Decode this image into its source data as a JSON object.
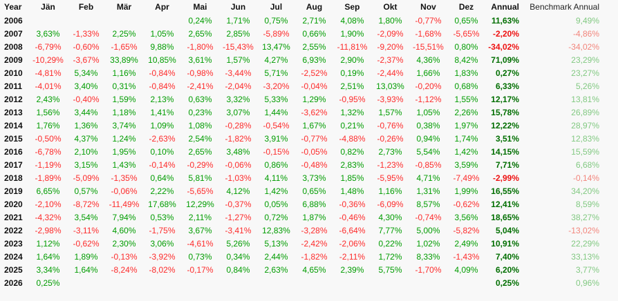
{
  "table": {
    "columns": [
      "Year",
      "Jän",
      "Feb",
      "Mär",
      "Apr",
      "Mai",
      "Jun",
      "Jul",
      "Aug",
      "Sep",
      "Okt",
      "Nov",
      "Dez",
      "Annual",
      "Benchmark Annual"
    ],
    "rows": [
      {
        "year": "2006",
        "months": [
          "",
          "",
          "",
          "",
          "0,24%",
          "1,71%",
          "0,75%",
          "2,71%",
          "4,08%",
          "1,80%",
          "-0,77%",
          "0,65%"
        ],
        "annual": "11,63%",
        "benchmark": "9,49%"
      },
      {
        "year": "2007",
        "months": [
          "3,63%",
          "-1,33%",
          "2,25%",
          "1,05%",
          "2,65%",
          "2,85%",
          "-5,89%",
          "0,66%",
          "1,90%",
          "-2,09%",
          "-1,68%",
          "-5,65%"
        ],
        "annual": "-2,20%",
        "benchmark": "-4,86%"
      },
      {
        "year": "2008",
        "months": [
          "-6,79%",
          "-0,60%",
          "-1,65%",
          "9,88%",
          "-1,80%",
          "-15,43%",
          "13,47%",
          "2,55%",
          "-11,81%",
          "-9,20%",
          "-15,51%",
          "0,80%"
        ],
        "annual": "-34,02%",
        "benchmark": "-34,02%"
      },
      {
        "year": "2009",
        "months": [
          "-10,29%",
          "-3,67%",
          "33,89%",
          "10,85%",
          "3,61%",
          "1,57%",
          "4,27%",
          "6,93%",
          "2,90%",
          "-2,37%",
          "4,36%",
          "8,42%"
        ],
        "annual": "71,09%",
        "benchmark": "23,29%"
      },
      {
        "year": "2010",
        "months": [
          "-4,81%",
          "5,34%",
          "1,16%",
          "-0,84%",
          "-0,98%",
          "-3,44%",
          "5,71%",
          "-2,52%",
          "0,19%",
          "-2,44%",
          "1,66%",
          "1,83%"
        ],
        "annual": "0,27%",
        "benchmark": "23,27%"
      },
      {
        "year": "2011",
        "months": [
          "-4,01%",
          "3,40%",
          "0,31%",
          "-0,84%",
          "-2,41%",
          "-2,04%",
          "-3,20%",
          "-0,04%",
          "2,51%",
          "13,03%",
          "-0,20%",
          "0,68%"
        ],
        "annual": "6,33%",
        "benchmark": "5,26%"
      },
      {
        "year": "2012",
        "months": [
          "2,43%",
          "-0,40%",
          "1,59%",
          "2,13%",
          "0,63%",
          "3,32%",
          "5,33%",
          "1,29%",
          "-0,95%",
          "-3,93%",
          "-1,12%",
          "1,55%"
        ],
        "annual": "12,17%",
        "benchmark": "13,81%"
      },
      {
        "year": "2013",
        "months": [
          "1,56%",
          "3,44%",
          "1,18%",
          "1,41%",
          "0,23%",
          "3,07%",
          "1,44%",
          "-3,62%",
          "1,32%",
          "1,57%",
          "1,05%",
          "2,26%"
        ],
        "annual": "15,78%",
        "benchmark": "26,89%"
      },
      {
        "year": "2014",
        "months": [
          "1,76%",
          "1,36%",
          "3,74%",
          "1,09%",
          "1,08%",
          "-0,28%",
          "-0,54%",
          "1,67%",
          "0,21%",
          "-0,76%",
          "0,38%",
          "1,97%"
        ],
        "annual": "12,22%",
        "benchmark": "28,97%"
      },
      {
        "year": "2015",
        "months": [
          "-0,50%",
          "4,37%",
          "1,24%",
          "-2,63%",
          "2,54%",
          "-1,82%",
          "3,91%",
          "-0,77%",
          "-4,88%",
          "-0,26%",
          "0,94%",
          "1,74%"
        ],
        "annual": "3,51%",
        "benchmark": "12,83%"
      },
      {
        "year": "2016",
        "months": [
          "-6,78%",
          "2,10%",
          "1,95%",
          "0,10%",
          "2,65%",
          "3,48%",
          "-0,15%",
          "-0,05%",
          "0,82%",
          "2,73%",
          "5,54%",
          "1,42%"
        ],
        "annual": "14,15%",
        "benchmark": "15,59%"
      },
      {
        "year": "2017",
        "months": [
          "-1,19%",
          "3,15%",
          "1,43%",
          "-0,14%",
          "-0,29%",
          "-0,06%",
          "0,86%",
          "-0,48%",
          "2,83%",
          "-1,23%",
          "-0,85%",
          "3,59%"
        ],
        "annual": "7,71%",
        "benchmark": "6,68%"
      },
      {
        "year": "2018",
        "months": [
          "-1,89%",
          "-5,09%",
          "-1,35%",
          "0,64%",
          "5,81%",
          "-1,03%",
          "4,11%",
          "3,73%",
          "1,85%",
          "-5,95%",
          "4,71%",
          "-7,49%"
        ],
        "annual": "-2,99%",
        "benchmark": "-0,14%"
      },
      {
        "year": "2019",
        "months": [
          "6,65%",
          "0,57%",
          "-0,06%",
          "2,22%",
          "-5,65%",
          "4,12%",
          "1,42%",
          "0,65%",
          "1,48%",
          "1,16%",
          "1,31%",
          "1,99%"
        ],
        "annual": "16,55%",
        "benchmark": "34,20%"
      },
      {
        "year": "2020",
        "months": [
          "-2,10%",
          "-8,72%",
          "-11,49%",
          "17,68%",
          "12,29%",
          "-0,37%",
          "0,05%",
          "6,88%",
          "-0,36%",
          "-6,09%",
          "8,57%",
          "-0,62%"
        ],
        "annual": "12,41%",
        "benchmark": "8,59%"
      },
      {
        "year": "2021",
        "months": [
          "-4,32%",
          "3,54%",
          "7,94%",
          "0,53%",
          "2,11%",
          "-1,27%",
          "0,72%",
          "1,87%",
          "-0,46%",
          "4,30%",
          "-0,74%",
          "3,56%"
        ],
        "annual": "18,65%",
        "benchmark": "38,27%"
      },
      {
        "year": "2022",
        "months": [
          "-2,98%",
          "-3,11%",
          "4,60%",
          "-1,75%",
          "3,67%",
          "-3,41%",
          "12,83%",
          "-3,28%",
          "-6,64%",
          "7,77%",
          "5,00%",
          "-5,82%"
        ],
        "annual": "5,04%",
        "benchmark": "-13,02%"
      },
      {
        "year": "2023",
        "months": [
          "1,12%",
          "-0,62%",
          "2,30%",
          "3,06%",
          "-4,61%",
          "5,26%",
          "5,13%",
          "-2,42%",
          "-2,06%",
          "0,22%",
          "1,02%",
          "2,49%"
        ],
        "annual": "10,91%",
        "benchmark": "22,29%"
      },
      {
        "year": "2024",
        "months": [
          "1,64%",
          "1,89%",
          "-0,13%",
          "-3,92%",
          "0,73%",
          "0,34%",
          "2,44%",
          "-1,82%",
          "-2,11%",
          "1,72%",
          "8,33%",
          "-1,43%"
        ],
        "annual": "7,40%",
        "benchmark": "33,13%"
      },
      {
        "year": "2025",
        "months": [
          "3,34%",
          "1,64%",
          "-8,24%",
          "-8,02%",
          "-0,17%",
          "0,84%",
          "2,63%",
          "4,65%",
          "2,39%",
          "5,75%",
          "-1,70%",
          "4,09%"
        ],
        "annual": "6,20%",
        "benchmark": "3,77%"
      },
      {
        "year": "2026",
        "months": [
          "0,25%",
          "",
          "",
          "",
          "",
          "",
          "",
          "",
          "",
          "",
          "",
          ""
        ],
        "annual": "0,25%",
        "benchmark": "0,96%"
      }
    ]
  },
  "colors": {
    "positive": "#009c00",
    "negative": "#fd2b2b",
    "annual_positive": "#006e00",
    "annual_negative": "#ee1111",
    "benchmark_positive": "#82c982",
    "benchmark_negative": "#f2857c",
    "header_text": "#111111",
    "background": "#f8f8f8"
  }
}
